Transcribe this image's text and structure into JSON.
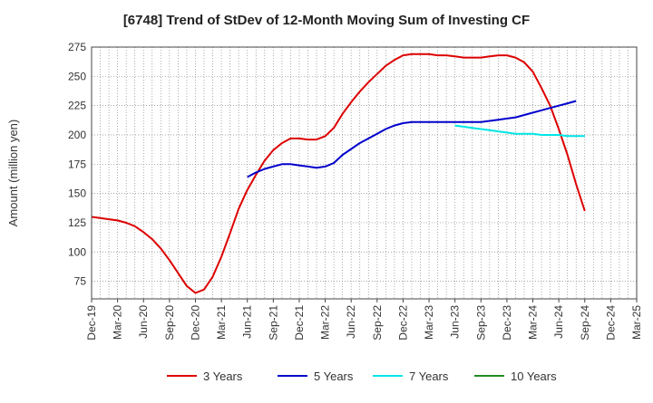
{
  "chart_data": {
    "type": "line",
    "title": "[6748]  Trend of StDev of 12-Month Moving Sum of Investing CF",
    "xlabel": "",
    "ylabel": "Amount (million yen)",
    "ylim": [
      60,
      275
    ],
    "yticks": [
      75,
      100,
      125,
      150,
      175,
      200,
      225,
      250,
      275
    ],
    "x_tick_labels": [
      "Dec-19",
      "Mar-20",
      "Jun-20",
      "Sep-20",
      "Dec-20",
      "Mar-21",
      "Jun-21",
      "Sep-21",
      "Dec-21",
      "Mar-22",
      "Jun-22",
      "Sep-22",
      "Dec-22",
      "Mar-23",
      "Jun-23",
      "Sep-23",
      "Dec-23",
      "Mar-24",
      "Jun-24",
      "Sep-24",
      "Dec-24",
      "Mar-25"
    ],
    "grid": true,
    "legend_position": "bottom",
    "series": [
      {
        "name": "3 Years",
        "color": "#dd0000",
        "start_month": 0,
        "values": [
          130,
          129,
          128,
          127,
          125,
          122,
          117,
          111,
          103,
          93,
          82,
          71,
          65,
          68,
          79,
          96,
          116,
          137,
          153,
          166,
          178,
          187,
          193,
          197,
          197,
          196,
          196,
          199,
          206,
          218,
          228,
          237,
          245,
          252,
          259,
          264,
          268,
          269,
          269,
          269,
          268,
          268,
          267,
          266,
          266,
          266,
          267,
          268,
          268,
          266,
          262,
          254,
          240,
          225,
          205,
          183,
          158,
          135
        ]
      },
      {
        "name": "5 Years",
        "color": "#0000cc",
        "start_month": 18,
        "values": [
          164,
          168,
          171,
          173,
          175,
          175,
          174,
          173,
          172,
          173,
          176,
          183,
          188,
          193,
          197,
          201,
          205,
          208,
          210,
          211,
          211,
          211,
          211,
          211,
          211,
          211,
          211,
          211,
          212,
          213,
          214,
          215,
          217,
          219,
          221,
          223,
          225,
          227,
          229
        ]
      },
      {
        "name": "7 Years",
        "color": "#00e5e5",
        "start_month": 42,
        "values": [
          208,
          207,
          206,
          205,
          204,
          203,
          202,
          201,
          201,
          201,
          200,
          200,
          200,
          199,
          199,
          199
        ]
      },
      {
        "name": "10 Years",
        "color": "#228b22",
        "start_month": null,
        "values": []
      }
    ]
  }
}
